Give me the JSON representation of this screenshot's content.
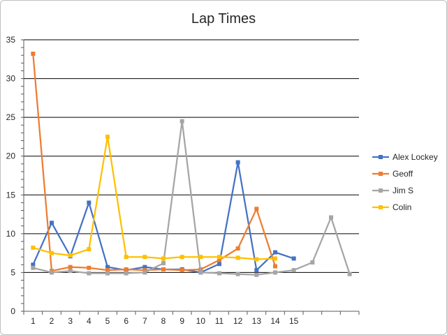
{
  "chart_data": {
    "type": "line",
    "title": "Lap Times",
    "xlabel": "",
    "ylabel": "",
    "ylim": [
      0,
      35
    ],
    "yticks": [
      0,
      5,
      10,
      15,
      20,
      25,
      30,
      35
    ],
    "x_categories": [
      "1",
      "2",
      "3",
      "4",
      "5",
      "6",
      "7",
      "8",
      "9",
      "10",
      "11",
      "12",
      "13",
      "14",
      "15"
    ],
    "x_range": [
      1,
      18
    ],
    "grid": "horizontal",
    "legend_position": "right",
    "series": [
      {
        "name": "Alex Lockey",
        "color": "#4472C4",
        "points": [
          [
            1,
            6.0
          ],
          [
            2,
            11.4
          ],
          [
            3,
            7.1
          ],
          [
            4,
            14.0
          ],
          [
            5,
            5.7
          ],
          [
            6,
            5.3
          ],
          [
            7,
            5.7
          ],
          [
            8,
            5.4
          ],
          [
            9,
            5.4
          ],
          [
            10,
            5.0
          ],
          [
            11,
            6.1
          ],
          [
            12,
            19.2
          ],
          [
            13,
            5.3
          ],
          [
            14,
            7.6
          ],
          [
            15,
            6.8
          ]
        ]
      },
      {
        "name": "Geoff",
        "color": "#ED7D31",
        "points": [
          [
            1,
            33.2
          ],
          [
            2,
            5.2
          ],
          [
            3,
            5.7
          ],
          [
            4,
            5.6
          ],
          [
            5,
            5.3
          ],
          [
            6,
            5.4
          ],
          [
            7,
            5.3
          ],
          [
            8,
            5.4
          ],
          [
            9,
            5.3
          ],
          [
            10,
            5.4
          ],
          [
            11,
            6.6
          ],
          [
            12,
            8.1
          ],
          [
            13,
            13.2
          ],
          [
            14,
            5.8
          ]
        ]
      },
      {
        "name": "Jim S",
        "color": "#A5A5A5",
        "points": [
          [
            1,
            5.6
          ],
          [
            2,
            5.0
          ],
          [
            3,
            5.2
          ],
          [
            4,
            4.9
          ],
          [
            5,
            4.9
          ],
          [
            6,
            4.9
          ],
          [
            7,
            5.0
          ],
          [
            8,
            6.2
          ],
          [
            9,
            24.5
          ],
          [
            10,
            5.0
          ],
          [
            11,
            4.9
          ],
          [
            12,
            4.8
          ],
          [
            13,
            4.7
          ],
          [
            14,
            5.0
          ],
          [
            15,
            5.3
          ],
          [
            16,
            6.3
          ],
          [
            17,
            12.1
          ],
          [
            18,
            4.8
          ]
        ]
      },
      {
        "name": "Colin",
        "color": "#FFC000",
        "points": [
          [
            1,
            8.2
          ],
          [
            2,
            7.5
          ],
          [
            3,
            7.2
          ],
          [
            4,
            8.0
          ],
          [
            5,
            22.5
          ],
          [
            6,
            7.0
          ],
          [
            7,
            7.0
          ],
          [
            8,
            6.8
          ],
          [
            9,
            7.0
          ],
          [
            10,
            7.0
          ],
          [
            11,
            7.0
          ],
          [
            12,
            6.9
          ],
          [
            13,
            6.7
          ],
          [
            14,
            6.8
          ]
        ]
      }
    ]
  }
}
